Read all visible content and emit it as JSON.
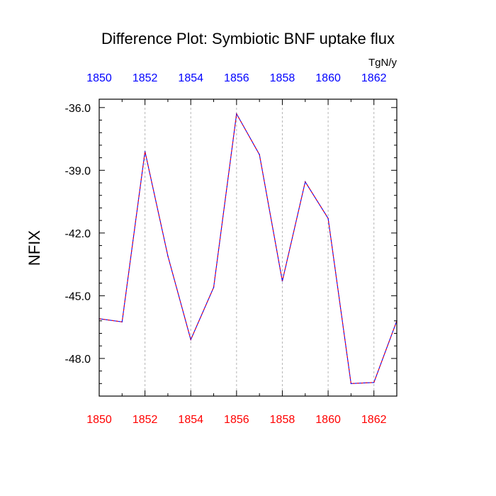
{
  "chart_data": {
    "type": "line",
    "title": "Difference Plot: Symbiotic BNF uptake flux",
    "units": "TgN/y",
    "ylabel": "NFIX",
    "xlabel": "",
    "xlim": [
      1850,
      1863
    ],
    "ylim": [
      -49.8,
      -35.6
    ],
    "x_ticks": [
      1850,
      1852,
      1854,
      1856,
      1858,
      1860,
      1862
    ],
    "y_ticks": [
      -36.0,
      -39.0,
      -42.0,
      -45.0,
      -48.0
    ],
    "y_tick_labels": [
      "-36.0",
      "-39.0",
      "-42.0",
      "-45.0",
      "-48.0"
    ],
    "x_grid": true,
    "y_grid": false,
    "bottom_axis_color": "#ff0000",
    "top_axis_color": "#0000ff",
    "series": [
      {
        "line_colors": [
          "#0000ff",
          "#ff0000"
        ],
        "x": [
          1850,
          1851,
          1852,
          1853,
          1854,
          1855,
          1856,
          1857,
          1858,
          1859,
          1860,
          1861,
          1862,
          1863
        ],
        "values": [
          -46.1,
          -46.25,
          -38.1,
          -43.1,
          -47.1,
          -44.6,
          -36.3,
          -38.25,
          -44.3,
          -39.55,
          -41.3,
          -49.2,
          -49.15,
          -46.2
        ]
      }
    ]
  }
}
